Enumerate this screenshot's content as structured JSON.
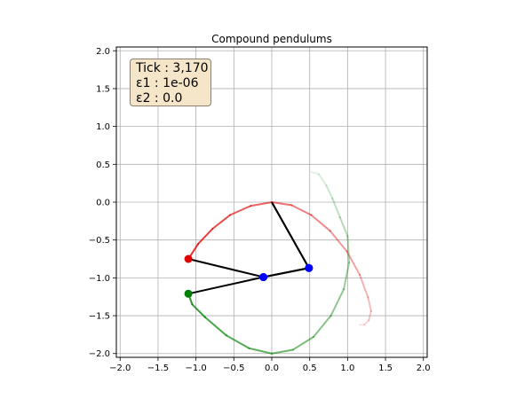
{
  "info_box": {
    "tick": "Tick : 3,170",
    "eps1": "ε1 : 1e-06",
    "eps2": "ε2 : 0.0"
  },
  "colors": {
    "pendulum_a": "#e00000",
    "pendulum_b": "#008000",
    "joint": "#0000ff",
    "rod": "#000000",
    "grid": "#b0b0b0",
    "info_bg": "#f5e6c9"
  },
  "chart_data": {
    "type": "line",
    "title": "Compound pendulums",
    "xlabel": "",
    "ylabel": "",
    "xlim": [
      -2.05,
      2.05
    ],
    "ylim": [
      -2.05,
      2.05
    ],
    "grid": true,
    "legend": "none",
    "x_ticks": [
      "−2.0",
      "−1.5",
      "−1.0",
      "−0.5",
      "0.0",
      "0.5",
      "1.0",
      "1.5",
      "2.0"
    ],
    "y_ticks": [
      "2.0",
      "1.5",
      "1.0",
      "0.5",
      "0.0",
      "−0.5",
      "−1.0",
      "−1.5",
      "−2.0"
    ],
    "pivot": [
      0.0,
      0.0
    ],
    "pendulums": [
      {
        "rods": [
          [
            0.0,
            0.0
          ],
          [
            0.49,
            -0.87
          ],
          [
            -0.11,
            -0.99
          ],
          [
            -1.1,
            -0.75
          ]
        ],
        "bobs": [
          [
            0.49,
            -0.87
          ],
          [
            -0.11,
            -0.99
          ]
        ],
        "end_bob": [
          -1.1,
          -0.75
        ],
        "trail": [
          [
            1.16,
            -1.62
          ],
          [
            1.22,
            -1.62
          ],
          [
            1.28,
            -1.56
          ],
          [
            1.31,
            -1.44
          ],
          [
            1.27,
            -1.26
          ],
          [
            1.16,
            -0.96
          ],
          [
            0.99,
            -0.65
          ],
          [
            0.77,
            -0.38
          ],
          [
            0.52,
            -0.17
          ],
          [
            0.26,
            -0.04
          ],
          [
            0.0,
            0.0
          ],
          [
            -0.28,
            -0.05
          ],
          [
            -0.55,
            -0.17
          ],
          [
            -0.78,
            -0.35
          ],
          [
            -0.97,
            -0.55
          ],
          [
            -1.1,
            -0.75
          ]
        ]
      },
      {
        "rods": [
          [
            0.0,
            0.0
          ],
          [
            0.49,
            -0.87
          ],
          [
            -0.11,
            -0.99
          ],
          [
            -1.1,
            -1.21
          ]
        ],
        "bobs": [
          [
            0.49,
            -0.87
          ],
          [
            -0.11,
            -0.99
          ]
        ],
        "end_bob": [
          -1.1,
          -1.21
        ],
        "trail": [
          [
            0.52,
            0.4
          ],
          [
            0.62,
            0.37
          ],
          [
            0.72,
            0.22
          ],
          [
            0.8,
            0.05
          ],
          [
            0.9,
            -0.2
          ],
          [
            1.0,
            -0.45
          ],
          [
            1.02,
            -0.8
          ],
          [
            0.95,
            -1.15
          ],
          [
            0.78,
            -1.5
          ],
          [
            0.55,
            -1.78
          ],
          [
            0.28,
            -1.95
          ],
          [
            0.0,
            -2.0
          ],
          [
            -0.3,
            -1.93
          ],
          [
            -0.6,
            -1.76
          ],
          [
            -0.88,
            -1.52
          ],
          [
            -1.05,
            -1.35
          ],
          [
            -1.1,
            -1.21
          ]
        ]
      }
    ]
  }
}
